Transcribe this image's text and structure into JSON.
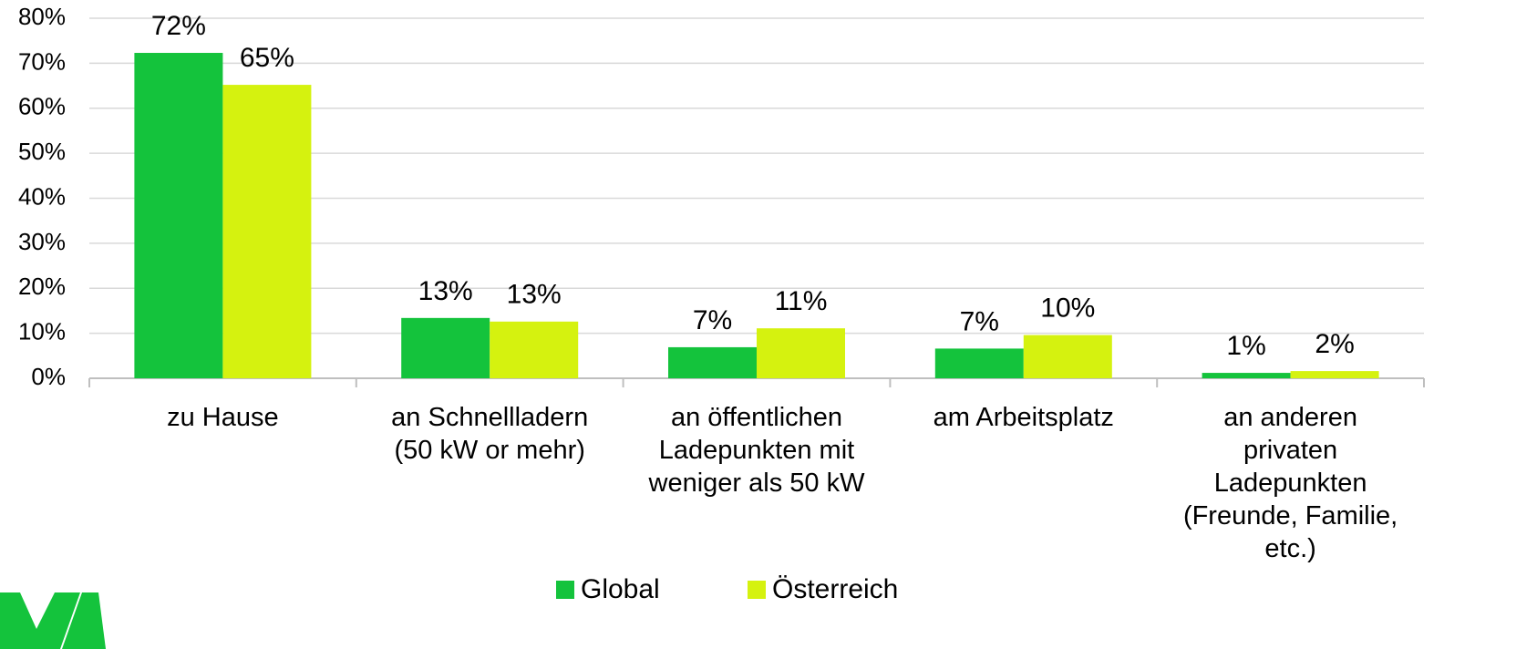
{
  "chart_data": {
    "type": "bar",
    "categories": [
      "zu Hause",
      "an Schnellladern\n(50 kW or mehr)",
      "an öffentlichen\nLadepunkten mit\nweniger als 50 kW",
      "am Arbeitsplatz",
      "an anderen\nprivaten\nLadepunkten\n(Freunde, Familie,\netc.)"
    ],
    "series": [
      {
        "name": "Global",
        "color": "#14c33c",
        "values": [
          72.3,
          13.4,
          6.9,
          6.6,
          1.2
        ],
        "value_labels": [
          "72%",
          "13%",
          "7%",
          "7%",
          "1%"
        ]
      },
      {
        "name": "Österreich",
        "color": "#d5f20f",
        "values": [
          65.2,
          12.6,
          11.1,
          9.6,
          1.6
        ],
        "value_labels": [
          "65%",
          "13%",
          "11%",
          "10%",
          "2%"
        ]
      }
    ],
    "ylim": [
      0,
      80
    ],
    "yticks": [
      {
        "value": 0,
        "label": "0%"
      },
      {
        "value": 10,
        "label": "10%"
      },
      {
        "value": 20,
        "label": "20%"
      },
      {
        "value": 30,
        "label": "30%"
      },
      {
        "value": 40,
        "label": "40%"
      },
      {
        "value": 50,
        "label": "50%"
      },
      {
        "value": 60,
        "label": "60%"
      },
      {
        "value": 70,
        "label": "70%"
      },
      {
        "value": 80,
        "label": "80%"
      }
    ],
    "grid": true,
    "legend": "bottom"
  }
}
